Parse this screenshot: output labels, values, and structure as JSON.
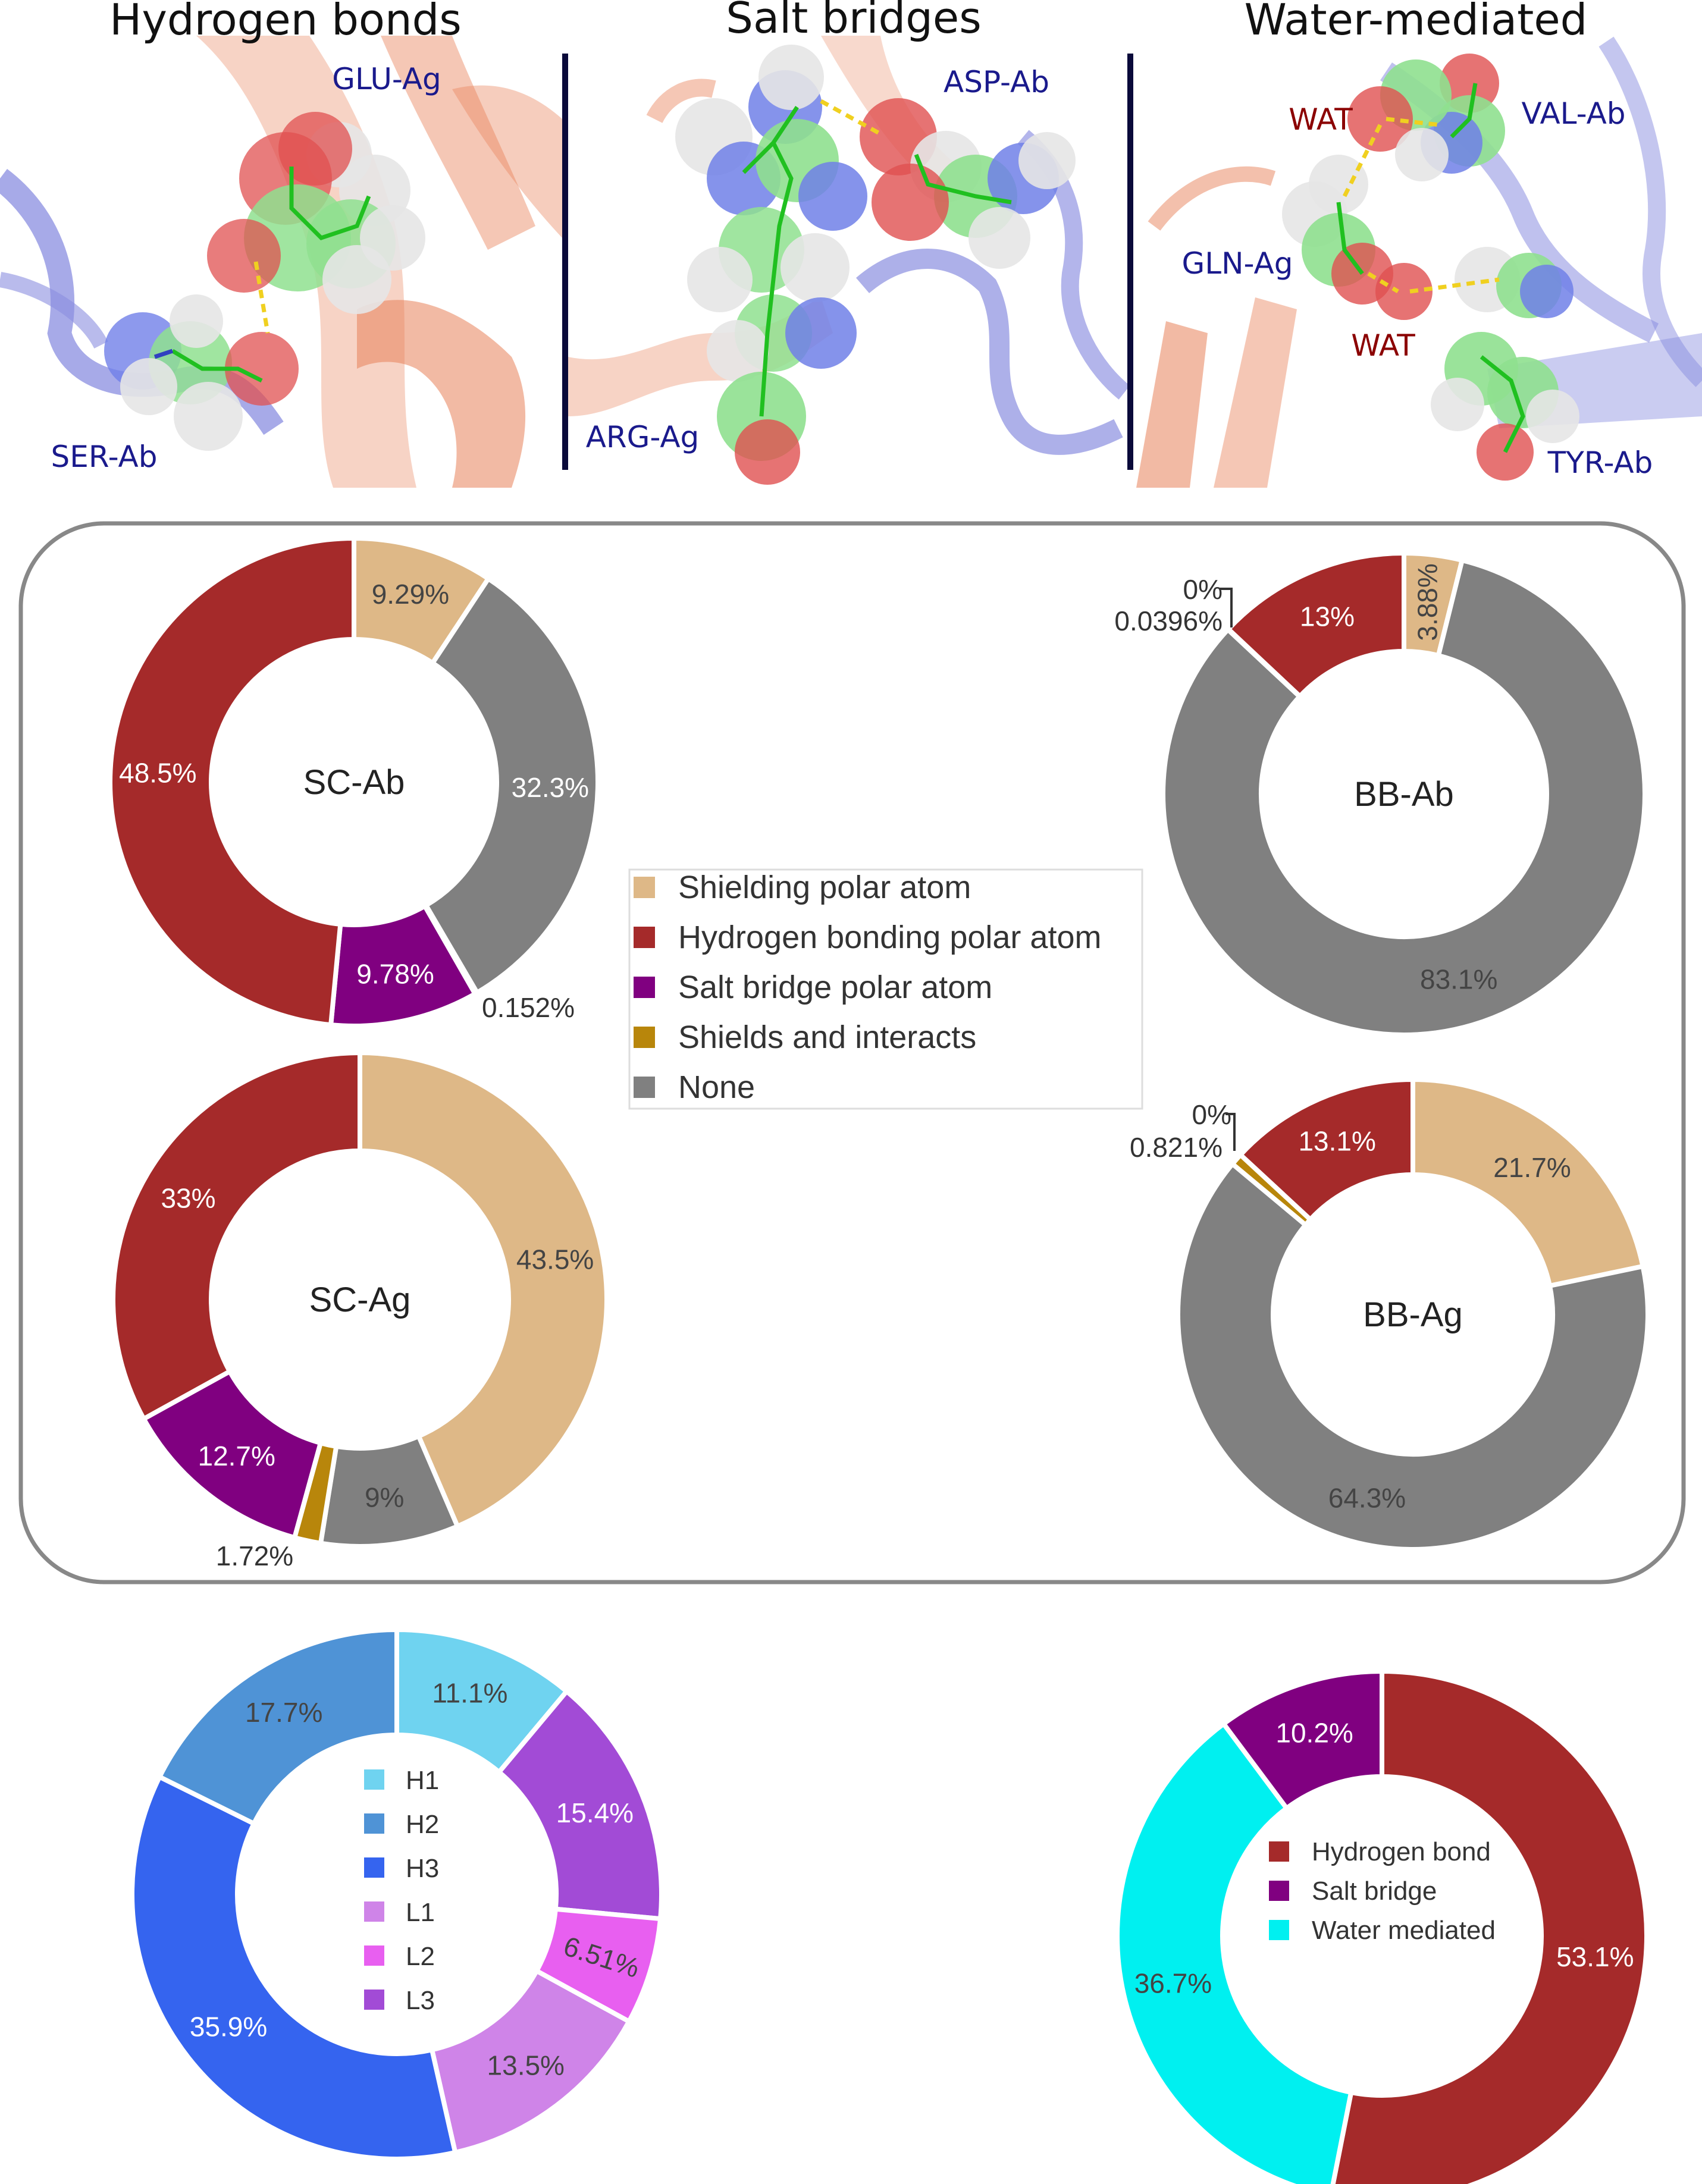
{
  "panels": {
    "hbond": {
      "title": "Hydrogen bonds",
      "labels": [
        "GLU-Ag",
        "SER-Ab"
      ]
    },
    "salt": {
      "title": "Salt bridges",
      "labels": [
        "ASP-Ab",
        "ARG-Ag"
      ]
    },
    "water": {
      "title": "Water-mediated",
      "labels": [
        "WAT",
        "VAL-Ab",
        "GLN-Ag",
        "WAT",
        "TYR-Ab"
      ]
    }
  },
  "colors": {
    "shielding": "#deb887",
    "hbond": "#a52a2a",
    "salt": "#800080",
    "shields_interacts": "#b8860b",
    "none": "#808080",
    "H1": "#6fd3f0",
    "H2": "#4f93d6",
    "H3": "#3564ef",
    "L1": "#cf84e8",
    "L2": "#e85ff0",
    "L3": "#a24bd6",
    "water_mediated": "#00f0f0",
    "protein_ag": "#e8825a",
    "protein_ab": "#8a8ee0",
    "carbon": "#8fe08f",
    "oxygen": "#e05050",
    "nitrogen": "#7080e8",
    "hydrogen": "#e6e6e6",
    "hbond_dash": "#f0d020",
    "divider": "#0a0a3a",
    "label_blue": "#1a1a8c",
    "label_red": "#8b0000"
  },
  "legend_polar": [
    "Shielding polar atom",
    "Hydrogen bonding polar atom",
    "Salt bridge polar atom",
    "Shields and interacts",
    "None"
  ],
  "legend_regions": [
    "H1",
    "H2",
    "H3",
    "L1",
    "L2",
    "L3"
  ],
  "legend_interactions": [
    "Hydrogen bond",
    "Salt bridge",
    "Water mediated"
  ],
  "chart_data": [
    {
      "type": "pie",
      "title": "SC-Ab",
      "categories": [
        "Shielding polar atom",
        "Hydrogen bonding polar atom",
        "Salt bridge polar atom",
        "Shields and interacts",
        "None"
      ],
      "values": [
        9.29,
        48.5,
        9.78,
        0.152,
        32.3
      ],
      "labels": [
        "9.29%",
        "48.5%",
        "9.78%",
        "0.152%",
        "32.3%"
      ]
    },
    {
      "type": "pie",
      "title": "BB-Ab",
      "categories": [
        "Shielding polar atom",
        "Hydrogen bonding polar atom",
        "Salt bridge polar atom",
        "Shields and interacts",
        "None"
      ],
      "values": [
        3.88,
        13,
        0,
        0.0396,
        83.1
      ],
      "labels": [
        "3.88%",
        "13%",
        "0%",
        "0.0396%",
        "83.1%"
      ]
    },
    {
      "type": "pie",
      "title": "SC-Ag",
      "categories": [
        "Shielding polar atom",
        "Hydrogen bonding polar atom",
        "Salt bridge polar atom",
        "Shields and interacts",
        "None"
      ],
      "values": [
        43.5,
        33,
        12.7,
        1.72,
        9
      ],
      "labels": [
        "43.5%",
        "33%",
        "12.7%",
        "1.72%",
        "9%"
      ]
    },
    {
      "type": "pie",
      "title": "BB-Ag",
      "categories": [
        "Shielding polar atom",
        "Hydrogen bonding polar atom",
        "Salt bridge polar atom",
        "Shields and interacts",
        "None"
      ],
      "values": [
        21.7,
        13.1,
        0,
        0.821,
        64.3
      ],
      "labels": [
        "21.7%",
        "13.1%",
        "0%",
        "0.821%",
        "64.3%"
      ]
    },
    {
      "type": "pie",
      "title": "",
      "categories": [
        "H1",
        "H2",
        "H3",
        "L1",
        "L2",
        "L3"
      ],
      "values": [
        11.1,
        17.7,
        35.9,
        13.5,
        6.51,
        15.4
      ],
      "labels": [
        "11.1%",
        "17.7%",
        "35.9%",
        "13.5%",
        "6.51%",
        "15.4%"
      ]
    },
    {
      "type": "pie",
      "title": "",
      "categories": [
        "Hydrogen bond",
        "Salt bridge",
        "Water mediated"
      ],
      "values": [
        53.1,
        10.2,
        36.7
      ],
      "labels": [
        "53.1%",
        "10.2%",
        "36.7%"
      ]
    }
  ]
}
